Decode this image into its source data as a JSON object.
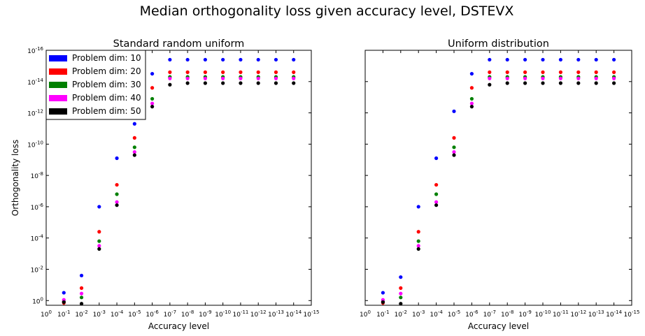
{
  "chart_data": {
    "type": "scatter",
    "suptitle": "Median orthogonality loss given accuracy level, DSTEVX",
    "x_scale": "log-categorical",
    "y_scale": "log",
    "x_tick_labels": [
      {
        "base": "10",
        "exp": "0"
      },
      {
        "base": "10",
        "exp": "-1"
      },
      {
        "base": "10",
        "exp": "-2"
      },
      {
        "base": "10",
        "exp": "-3"
      },
      {
        "base": "10",
        "exp": "-4"
      },
      {
        "base": "10",
        "exp": "-5"
      },
      {
        "base": "10",
        "exp": "-6"
      },
      {
        "base": "10",
        "exp": "-7"
      },
      {
        "base": "10",
        "exp": "-8"
      },
      {
        "base": "10",
        "exp": "-9"
      },
      {
        "base": "10",
        "exp": "-10"
      },
      {
        "base": "10",
        "exp": "-11"
      },
      {
        "base": "10",
        "exp": "-12"
      },
      {
        "base": "10",
        "exp": "-13"
      },
      {
        "base": "10",
        "exp": "-14"
      },
      {
        "base": "10",
        "exp": "-15"
      }
    ],
    "y_tick_labels": [
      {
        "base": "10",
        "exp": "0",
        "value": 1
      },
      {
        "base": "10",
        "exp": "-2",
        "value": 0.01
      },
      {
        "base": "10",
        "exp": "-4",
        "value": 0.0001
      },
      {
        "base": "10",
        "exp": "-6",
        "value": 1e-06
      },
      {
        "base": "10",
        "exp": "-8",
        "value": 1e-08
      },
      {
        "base": "10",
        "exp": "-10",
        "value": 1e-10
      },
      {
        "base": "10",
        "exp": "-12",
        "value": 1e-12
      },
      {
        "base": "10",
        "exp": "-14",
        "value": 1e-14
      },
      {
        "base": "10",
        "exp": "-16",
        "value": 1e-16
      }
    ],
    "ylim_log10": [
      0.3,
      -16
    ],
    "accuracy_exponents": [
      -1,
      -2,
      -3,
      -4,
      -5,
      -6,
      -7,
      -8,
      -9,
      -10,
      -11,
      -12,
      -13,
      -14
    ],
    "xlim_exponent": [
      0,
      -15
    ],
    "legend": {
      "location": "top-left",
      "entries": [
        "Problem dim: 10",
        "Problem dim: 20",
        "Problem dim: 30",
        "Problem dim: 40",
        "Problem dim: 50"
      ]
    },
    "panels": [
      {
        "title": "Standard random uniform",
        "xlabel": "Accuracy level",
        "ylabel": "Orthogonality loss",
        "series": [
          {
            "name": "Problem dim: 10",
            "color": "#0000ff",
            "log10_values": [
              -0.5,
              -1.6,
              -6.0,
              -9.1,
              -11.3,
              -14.5,
              -15.4,
              -15.4,
              -15.4,
              -15.4,
              -15.4,
              -15.4,
              -15.4,
              -15.4
            ]
          },
          {
            "name": "Problem dim: 20",
            "color": "#ff0000",
            "log10_values": [
              0.15,
              -0.8,
              -4.4,
              -7.4,
              -10.4,
              -13.6,
              -14.6,
              -14.6,
              -14.6,
              -14.6,
              -14.6,
              -14.6,
              -14.6,
              -14.6
            ]
          },
          {
            "name": "Problem dim: 30",
            "color": "#008000",
            "log10_values": [
              0.05,
              -0.2,
              -3.8,
              -6.8,
              -9.8,
              -12.9,
              -14.3,
              -14.3,
              -14.3,
              -14.3,
              -14.3,
              -14.3,
              -14.3,
              -14.3
            ]
          },
          {
            "name": "Problem dim: 40",
            "color": "#ff00ff",
            "log10_values": [
              -0.05,
              -0.45,
              -3.5,
              -6.3,
              -9.5,
              -12.6,
              -14.2,
              -14.2,
              -14.2,
              -14.2,
              -14.2,
              -14.2,
              -14.2,
              -14.2
            ]
          },
          {
            "name": "Problem dim: 50",
            "color": "#000000",
            "log10_values": [
              0.1,
              0.2,
              -3.3,
              -6.1,
              -9.3,
              -12.4,
              -13.8,
              -13.9,
              -13.9,
              -13.9,
              -13.9,
              -13.9,
              -13.9,
              -13.9
            ]
          }
        ]
      },
      {
        "title": "Uniform distribution",
        "xlabel": "Accuracy level",
        "ylabel": "",
        "series": [
          {
            "name": "Problem dim: 10",
            "color": "#0000ff",
            "log10_values": [
              -0.5,
              -1.5,
              -6.0,
              -9.1,
              -12.1,
              -14.5,
              -15.4,
              -15.4,
              -15.4,
              -15.4,
              -15.4,
              -15.4,
              -15.4,
              -15.4
            ]
          },
          {
            "name": "Problem dim: 20",
            "color": "#ff0000",
            "log10_values": [
              0.15,
              -0.8,
              -4.4,
              -7.4,
              -10.4,
              -13.6,
              -14.6,
              -14.6,
              -14.6,
              -14.6,
              -14.6,
              -14.6,
              -14.6,
              -14.6
            ]
          },
          {
            "name": "Problem dim: 30",
            "color": "#008000",
            "log10_values": [
              0.05,
              -0.2,
              -3.8,
              -6.8,
              -9.8,
              -12.9,
              -14.3,
              -14.3,
              -14.3,
              -14.3,
              -14.3,
              -14.3,
              -14.3,
              -14.3
            ]
          },
          {
            "name": "Problem dim: 40",
            "color": "#ff00ff",
            "log10_values": [
              -0.05,
              -0.45,
              -3.5,
              -6.3,
              -9.5,
              -12.6,
              -14.2,
              -14.2,
              -14.2,
              -14.2,
              -14.2,
              -14.2,
              -14.2,
              -14.2
            ]
          },
          {
            "name": "Problem dim: 50",
            "color": "#000000",
            "log10_values": [
              0.1,
              0.2,
              -3.3,
              -6.1,
              -9.3,
              -12.4,
              -13.8,
              -13.9,
              -13.9,
              -13.9,
              -13.9,
              -13.9,
              -13.9,
              -13.9
            ]
          }
        ]
      }
    ]
  }
}
